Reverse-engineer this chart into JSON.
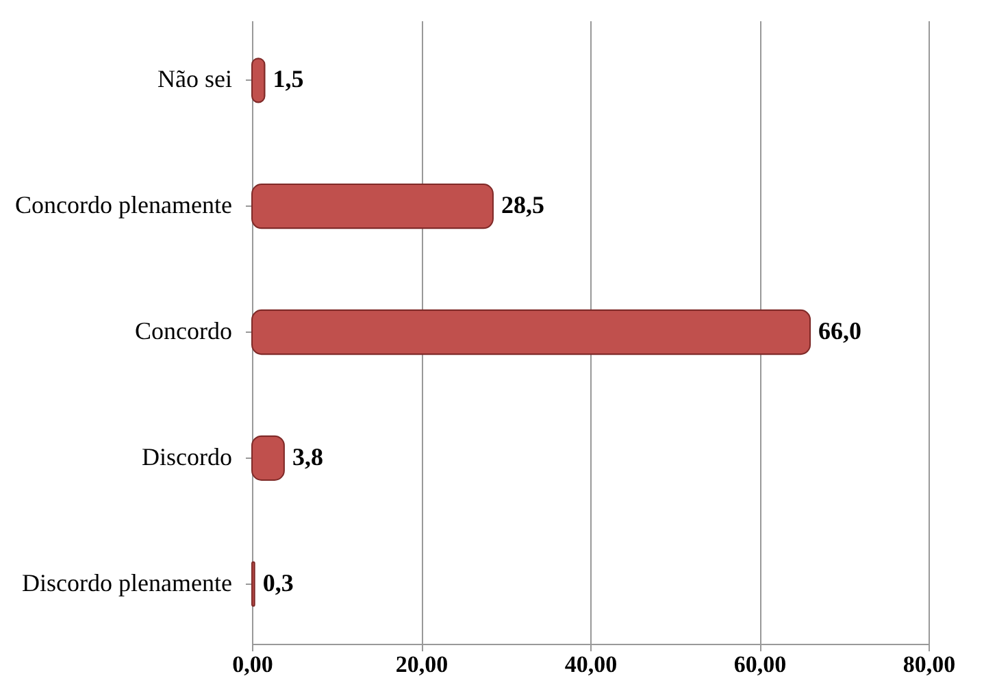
{
  "chart_data": {
    "type": "bar",
    "orientation": "horizontal",
    "categories": [
      "Não sei",
      "Concordo plenamente",
      "Concordo",
      "Discordo",
      "Discordo plenamente"
    ],
    "values": [
      1.5,
      28.5,
      66.0,
      3.8,
      0.3
    ],
    "value_labels": [
      "1,5",
      "28,5",
      "66,0",
      "3,8",
      "0,3"
    ],
    "color": "#c0504d",
    "xlim": [
      0,
      80
    ],
    "xticks": [
      {
        "value": 0,
        "label": "0,00"
      },
      {
        "value": 20,
        "label": "20,00"
      },
      {
        "value": 40,
        "label": "40,00"
      },
      {
        "value": 60,
        "label": "60,00"
      },
      {
        "value": 80,
        "label": "80,00"
      }
    ],
    "grid": "x"
  }
}
